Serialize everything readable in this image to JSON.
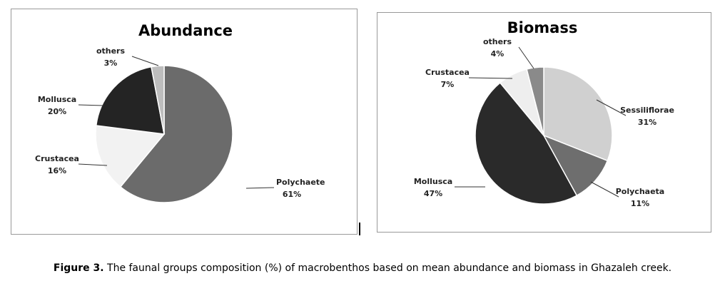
{
  "chart_data": [
    {
      "type": "pie",
      "title": "Abundance",
      "categories": [
        "Polychaete",
        "Crustacea",
        "Mollusca",
        "others"
      ],
      "values": [
        61,
        16,
        20,
        3
      ],
      "value_labels": [
        "61%",
        "16%",
        "20%",
        "3%"
      ],
      "colors": [
        "#6b6b6b",
        "#f2f2f2",
        "#242424",
        "#bdbdbd"
      ]
    },
    {
      "type": "pie",
      "title": "Biomass",
      "categories": [
        "Sessiliflorae",
        "Polychaeta",
        "Mollusca",
        "Crustacea",
        "others"
      ],
      "values": [
        31,
        11,
        47,
        7,
        4
      ],
      "value_labels": [
        "31%",
        "11%",
        "47%",
        "7%",
        "4%"
      ],
      "colors": [
        "#d0d0d0",
        "#6e6e6e",
        "#2a2a2a",
        "#eeeeee",
        "#8a8a8a"
      ]
    }
  ],
  "caption": {
    "label": "Figure 3.",
    "text": "The faunal groups composition (%) of macrobenthos based on mean abundance and biomass in Ghazaleh creek."
  }
}
